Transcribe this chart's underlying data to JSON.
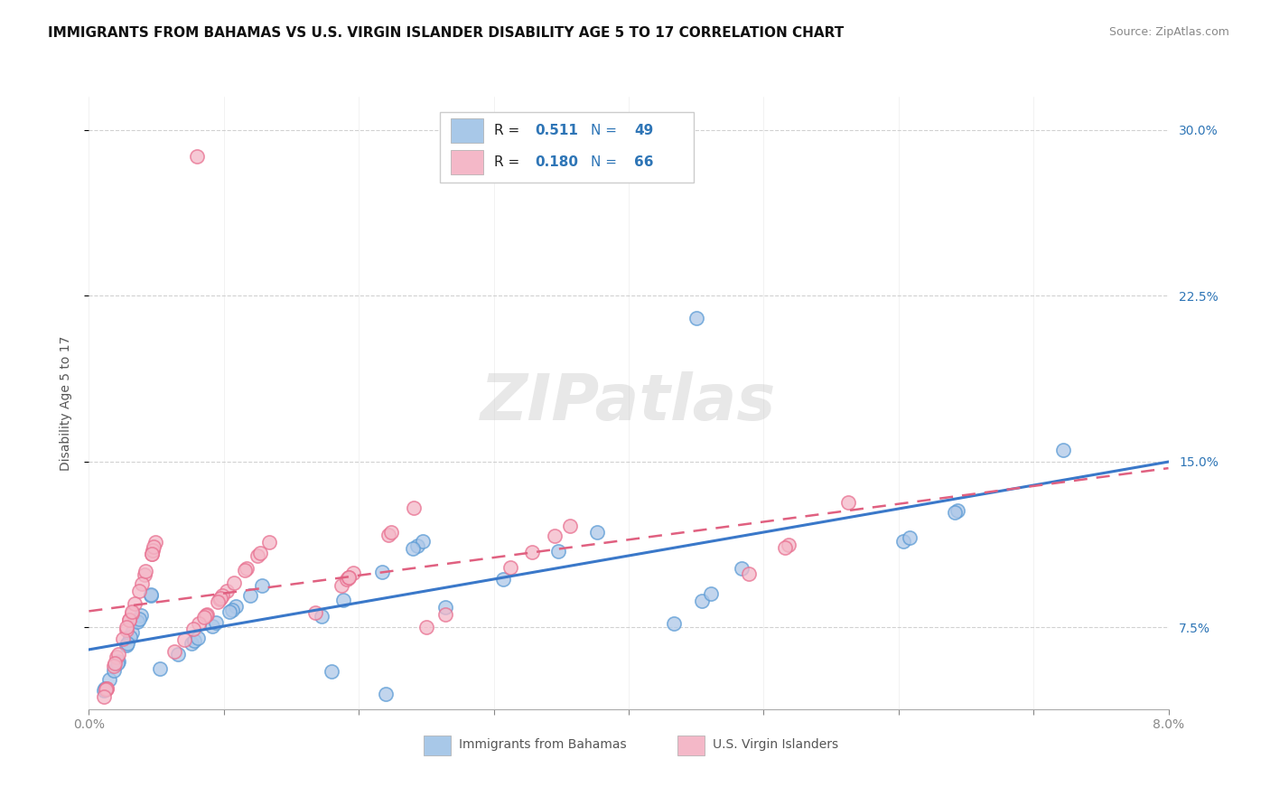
{
  "title": "IMMIGRANTS FROM BAHAMAS VS U.S. VIRGIN ISLANDER DISABILITY AGE 5 TO 17 CORRELATION CHART",
  "source": "Source: ZipAtlas.com",
  "ylabel": "Disability Age 5 to 17",
  "xlim": [
    0.0,
    0.08
  ],
  "ylim": [
    0.038,
    0.315
  ],
  "yticks": [
    0.075,
    0.15,
    0.225,
    0.3
  ],
  "xticks": [
    0.0,
    0.01,
    0.02,
    0.03,
    0.04,
    0.05,
    0.06,
    0.07,
    0.08
  ],
  "r_blue": "0.511",
  "n_blue": "49",
  "r_pink": "0.180",
  "n_pink": "66",
  "color_blue_fill": "#aec8e8",
  "color_blue_edge": "#5b9bd5",
  "color_pink_fill": "#f4b8c8",
  "color_pink_edge": "#e87090",
  "color_blue_line": "#3a78c9",
  "color_pink_line": "#e06080",
  "color_text_blue": "#2e75b6",
  "color_text_dark": "#1a1a2e",
  "watermark": "ZIPatlas",
  "label_blue": "Immigrants from Bahamas",
  "label_pink": "U.S. Virgin Islanders",
  "legend_sq_blue": "#a8c8e8",
  "legend_sq_pink": "#f4b8c8"
}
